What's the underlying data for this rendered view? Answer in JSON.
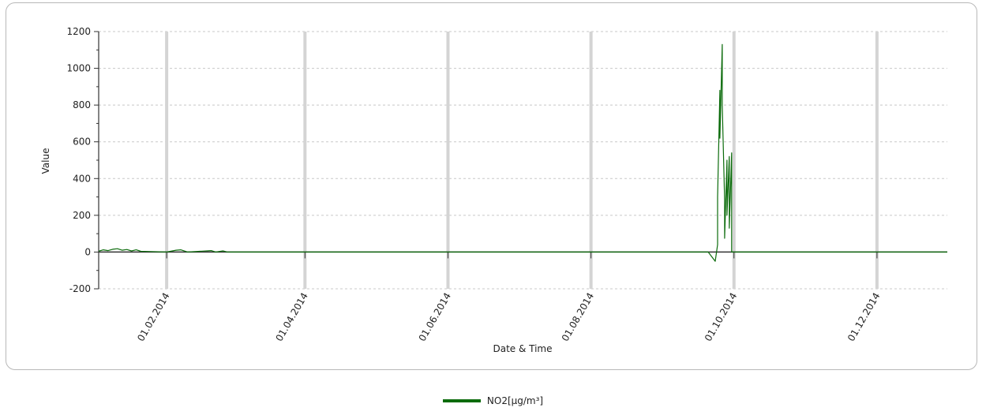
{
  "chart_data": {
    "type": "line",
    "title": "",
    "xlabel": "Date & Time",
    "ylabel": "Value",
    "ylim": [
      -200,
      1200
    ],
    "yticks": [
      -200,
      0,
      200,
      400,
      600,
      800,
      1000,
      1200
    ],
    "xlim": [
      "2014-01-03",
      "2014-12-31"
    ],
    "xticks": [
      {
        "date": "2014-02-01",
        "label": "01.02.2014"
      },
      {
        "date": "2014-04-01",
        "label": "01.04.2014"
      },
      {
        "date": "2014-06-01",
        "label": "01.06.2014"
      },
      {
        "date": "2014-08-01",
        "label": "01.08.2014"
      },
      {
        "date": "2014-10-01",
        "label": "01.10.2014"
      },
      {
        "date": "2014-12-01",
        "label": "01.12.2014"
      }
    ],
    "grid": true,
    "legend_position": "bottom",
    "series": [
      {
        "name": "NO2[µg/m³]",
        "color": "#0b6b0b",
        "points": [
          [
            "2014-01-03",
            5
          ],
          [
            "2014-01-05",
            12
          ],
          [
            "2014-01-07",
            8
          ],
          [
            "2014-01-09",
            15
          ],
          [
            "2014-01-11",
            18
          ],
          [
            "2014-01-13",
            10
          ],
          [
            "2014-01-15",
            14
          ],
          [
            "2014-01-17",
            6
          ],
          [
            "2014-01-19",
            12
          ],
          [
            "2014-01-21",
            4
          ],
          [
            "2014-01-24",
            3
          ],
          [
            "2014-02-01",
            0
          ],
          [
            "2014-02-05",
            10
          ],
          [
            "2014-02-07",
            12
          ],
          [
            "2014-02-10",
            0
          ],
          [
            "2014-02-20",
            8
          ],
          [
            "2014-02-22",
            0
          ],
          [
            "2014-02-25",
            6
          ],
          [
            "2014-02-27",
            0
          ],
          [
            "2014-06-15",
            0
          ],
          [
            "2014-09-20",
            0
          ],
          [
            "2014-09-23",
            -50
          ],
          [
            "2014-09-24",
            40
          ],
          [
            "2014-09-24",
            300
          ],
          [
            "2014-09-25",
            880
          ],
          [
            "2014-09-25",
            620
          ],
          [
            "2014-09-26",
            1130
          ],
          [
            "2014-09-26",
            800
          ],
          [
            "2014-09-27",
            280
          ],
          [
            "2014-09-27",
            75
          ],
          [
            "2014-09-28",
            500
          ],
          [
            "2014-09-28",
            200
          ],
          [
            "2014-09-29",
            520
          ],
          [
            "2014-09-29",
            130
          ],
          [
            "2014-09-30",
            540
          ],
          [
            "2014-09-30",
            0
          ],
          [
            "2014-10-15",
            0
          ],
          [
            "2014-12-31",
            0
          ]
        ]
      }
    ]
  }
}
